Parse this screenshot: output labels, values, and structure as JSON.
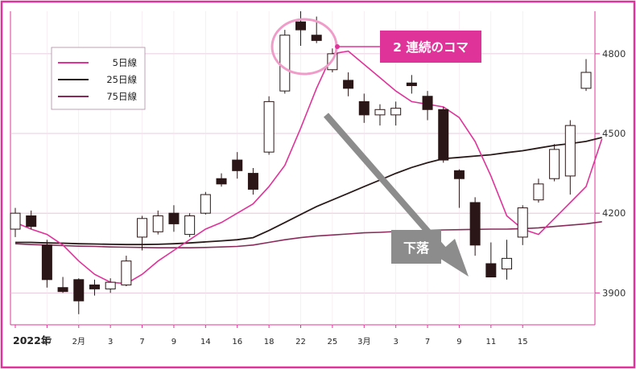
{
  "chart_data": {
    "type": "candlestick",
    "x_tick_labels": [
      "2022年",
      "27",
      "2月",
      "3",
      "7",
      "9",
      "14",
      "16",
      "18",
      "22",
      "25",
      "3月",
      "3",
      "7",
      "9",
      "11",
      "15"
    ],
    "y_ticks": [
      3900,
      4200,
      4500,
      4800
    ],
    "ylim": [
      3780,
      4960
    ],
    "legend": [
      "5日線",
      "25日線",
      "75日線"
    ],
    "legend_placement": "top-left",
    "callout": "2 連続のコマ",
    "arrow_label": "下落",
    "colors": {
      "frame": "#e0339a",
      "ma5": "#e0339a",
      "ma25": "#2a1a1a",
      "ma75": "#8a2a5a",
      "callout_bg": "#e0339a",
      "circle": "#ef9cc9",
      "arrow": "#8c8c8c",
      "down_candle": "#2a1616",
      "grid": "#e2bcd4"
    },
    "candles": [
      {
        "o": 4140,
        "h": 4220,
        "l": 4110,
        "c": 4200
      },
      {
        "o": 4190,
        "h": 4210,
        "l": 4140,
        "c": 4150
      },
      {
        "o": 4080,
        "h": 4100,
        "l": 3920,
        "c": 3950
      },
      {
        "o": 3920,
        "h": 3960,
        "l": 3900,
        "c": 3905
      },
      {
        "o": 3950,
        "h": 3955,
        "l": 3820,
        "c": 3870
      },
      {
        "o": 3930,
        "h": 3950,
        "l": 3890,
        "c": 3915
      },
      {
        "o": 3915,
        "h": 3955,
        "l": 3900,
        "c": 3940
      },
      {
        "o": 3930,
        "h": 4040,
        "l": 3925,
        "c": 4020
      },
      {
        "o": 4110,
        "h": 4190,
        "l": 4060,
        "c": 4180
      },
      {
        "o": 4130,
        "h": 4210,
        "l": 4120,
        "c": 4190
      },
      {
        "o": 4200,
        "h": 4230,
        "l": 4130,
        "c": 4160
      },
      {
        "o": 4120,
        "h": 4200,
        "l": 4110,
        "c": 4190
      },
      {
        "o": 4200,
        "h": 4280,
        "l": 4195,
        "c": 4270
      },
      {
        "o": 4330,
        "h": 4350,
        "l": 4300,
        "c": 4310
      },
      {
        "o": 4400,
        "h": 4430,
        "l": 4330,
        "c": 4360
      },
      {
        "o": 4350,
        "h": 4370,
        "l": 4270,
        "c": 4290
      },
      {
        "o": 4430,
        "h": 4640,
        "l": 4420,
        "c": 4620
      },
      {
        "o": 4660,
        "h": 4890,
        "l": 4650,
        "c": 4870
      },
      {
        "o": 4920,
        "h": 4960,
        "l": 4830,
        "c": 4890
      },
      {
        "o": 4870,
        "h": 4940,
        "l": 4840,
        "c": 4850
      },
      {
        "o": 4740,
        "h": 4820,
        "l": 4730,
        "c": 4800
      },
      {
        "o": 4700,
        "h": 4730,
        "l": 4640,
        "c": 4670
      },
      {
        "o": 4620,
        "h": 4650,
        "l": 4540,
        "c": 4570
      },
      {
        "o": 4570,
        "h": 4610,
        "l": 4530,
        "c": 4590
      },
      {
        "o": 4570,
        "h": 4620,
        "l": 4530,
        "c": 4595
      },
      {
        "o": 4690,
        "h": 4720,
        "l": 4650,
        "c": 4680
      },
      {
        "o": 4640,
        "h": 4660,
        "l": 4550,
        "c": 4590
      },
      {
        "o": 4590,
        "h": 4600,
        "l": 4390,
        "c": 4400
      },
      {
        "o": 4360,
        "h": 4365,
        "l": 4220,
        "c": 4330
      },
      {
        "o": 4240,
        "h": 4260,
        "l": 4040,
        "c": 4080
      },
      {
        "o": 4010,
        "h": 4090,
        "l": 3960,
        "c": 3960
      },
      {
        "o": 3990,
        "h": 4100,
        "l": 3950,
        "c": 4030
      },
      {
        "o": 4110,
        "h": 4230,
        "l": 4080,
        "c": 4220
      },
      {
        "o": 4250,
        "h": 4330,
        "l": 4240,
        "c": 4310
      },
      {
        "o": 4330,
        "h": 4460,
        "l": 4320,
        "c": 4440
      },
      {
        "o": 4340,
        "h": 4550,
        "l": 4270,
        "c": 4530
      },
      {
        "o": 4670,
        "h": 4780,
        "l": 4660,
        "c": 4730
      }
    ],
    "ma5": [
      4165,
      4140,
      4120,
      4080,
      4020,
      3970,
      3940,
      3935,
      3970,
      4020,
      4060,
      4100,
      4140,
      4165,
      4200,
      4235,
      4300,
      4380,
      4520,
      4670,
      4800,
      4810,
      4760,
      4710,
      4660,
      4620,
      4610,
      4600,
      4560,
      4470,
      4340,
      4190,
      4140,
      4120,
      4180,
      4240,
      4300,
      4480
    ],
    "ma25": [
      4090,
      4090,
      4088,
      4087,
      4085,
      4084,
      4083,
      4082,
      4082,
      4083,
      4085,
      4088,
      4092,
      4096,
      4100,
      4108,
      4135,
      4165,
      4195,
      4225,
      4250,
      4275,
      4300,
      4325,
      4350,
      4372,
      4390,
      4405,
      4410,
      4415,
      4420,
      4428,
      4435,
      4445,
      4455,
      4462,
      4470,
      4485
    ],
    "ma75": [
      4085,
      4082,
      4080,
      4078,
      4076,
      4075,
      4073,
      4072,
      4071,
      4070,
      4070,
      4070,
      4071,
      4073,
      4075,
      4080,
      4090,
      4100,
      4108,
      4114,
      4118,
      4122,
      4126,
      4128,
      4131,
      4133,
      4135,
      4137,
      4138,
      4139,
      4140,
      4140,
      4142,
      4145,
      4150,
      4155,
      4160,
      4168
    ]
  }
}
